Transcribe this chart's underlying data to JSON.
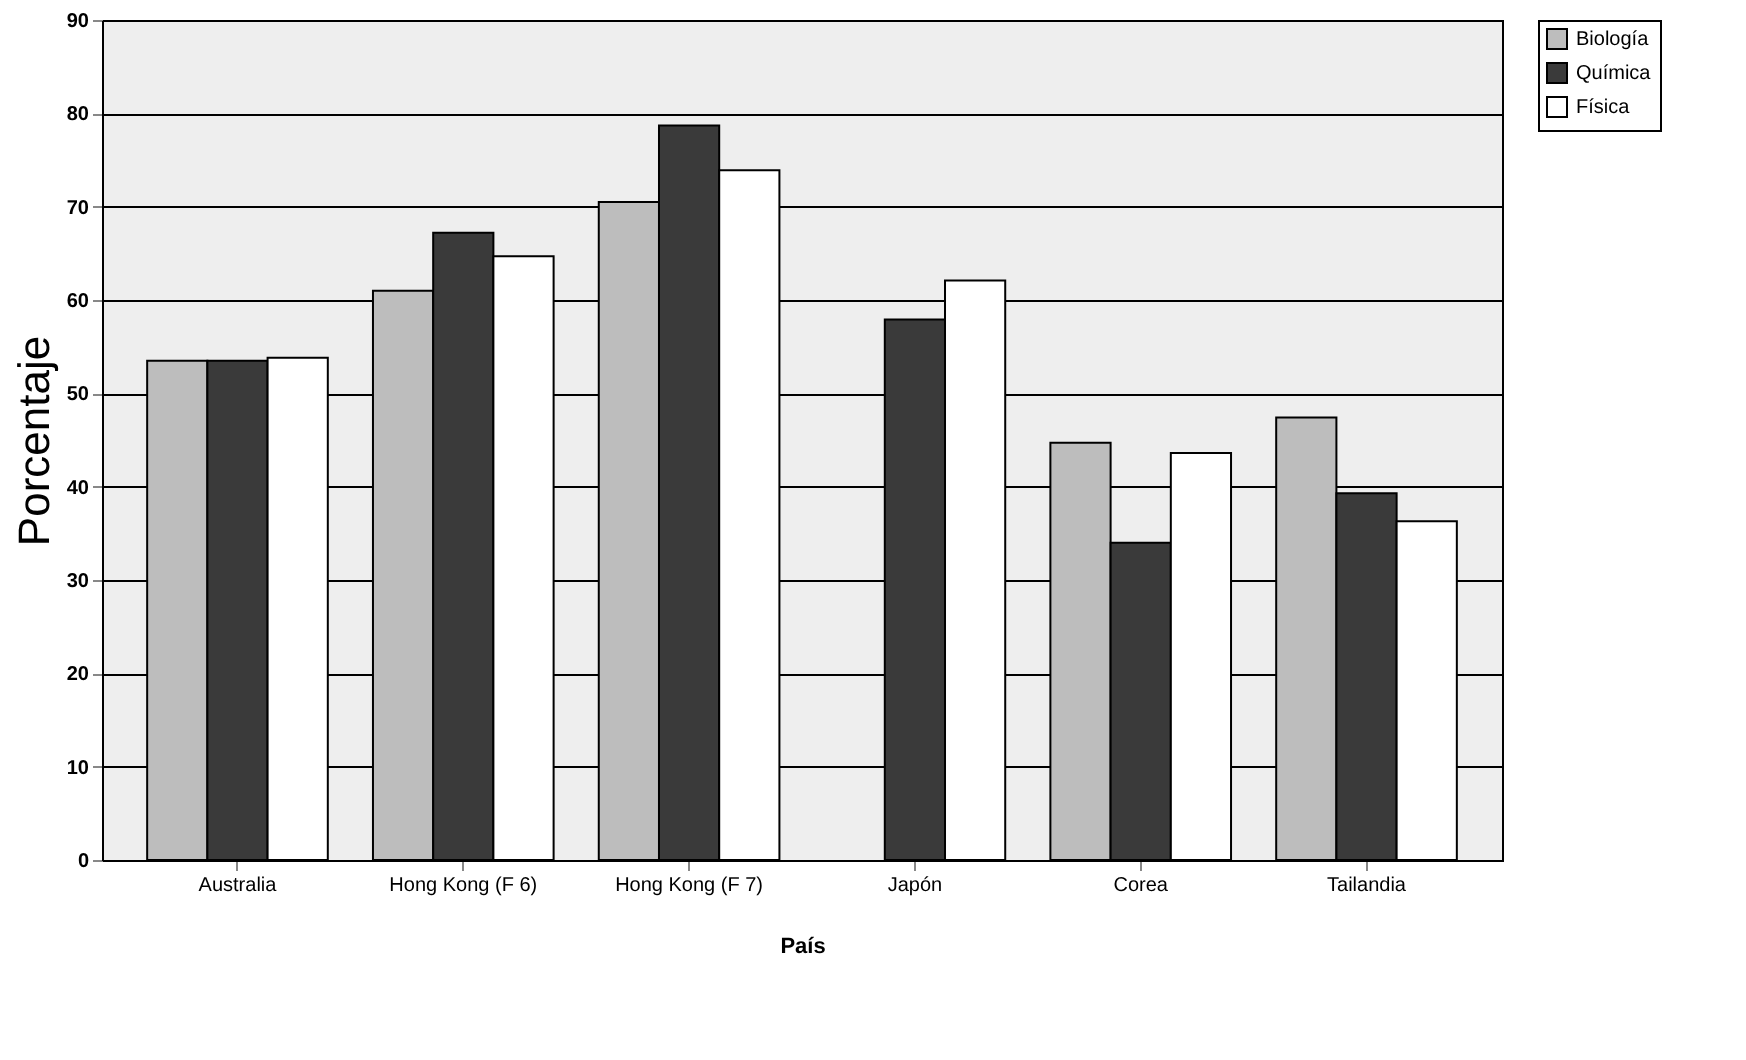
{
  "chart_data": {
    "type": "bar",
    "xlabel": "País",
    "ylabel": "Porcentaje",
    "categories": [
      "Australia",
      "Hong Kong (F 6)",
      "Hong Kong (F 7)",
      "Japón",
      "Corea",
      "Tailandia"
    ],
    "series": [
      {
        "name": "Biología",
        "color": "#bdbdbd",
        "values": [
          53.5,
          61,
          70.5,
          null,
          44.7,
          47.4
        ]
      },
      {
        "name": "Química",
        "color": "#3a3a3a",
        "values": [
          53.5,
          67.2,
          78.7,
          57.9,
          34,
          39.3
        ]
      },
      {
        "name": "Física",
        "color": "#ffffff",
        "values": [
          53.8,
          64.7,
          73.9,
          62.1,
          43.6,
          36.3
        ]
      }
    ],
    "ylim": [
      0,
      90
    ],
    "yticks": [
      0,
      10,
      20,
      30,
      40,
      50,
      60,
      70,
      80,
      90
    ],
    "grid": "y",
    "legend": "right"
  }
}
